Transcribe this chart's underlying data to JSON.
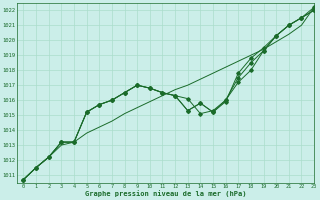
{
  "title": "Graphe pression niveau de la mer (hPa)",
  "bg_color": "#cbeee9",
  "grid_color": "#aaddcc",
  "line_color": "#1a6b2a",
  "text_color": "#1a6b2a",
  "xlim": [
    -0.5,
    23
  ],
  "ylim": [
    1010.5,
    1022.5
  ],
  "yticks": [
    1011,
    1012,
    1013,
    1014,
    1015,
    1016,
    1017,
    1018,
    1019,
    1020,
    1021,
    1022
  ],
  "xticks": [
    0,
    1,
    2,
    3,
    4,
    5,
    6,
    7,
    8,
    9,
    10,
    11,
    12,
    13,
    14,
    15,
    16,
    17,
    18,
    19,
    20,
    21,
    22,
    23
  ],
  "series": [
    [
      1010.7,
      1011.5,
      1012.2,
      1013.0,
      1013.2,
      1013.8,
      1014.2,
      1014.6,
      1015.1,
      1015.5,
      1015.9,
      1016.3,
      1016.7,
      1017.0,
      1017.4,
      1017.8,
      1018.2,
      1018.6,
      1019.0,
      1019.4,
      1019.9,
      1020.4,
      1021.0,
      1022.2
    ],
    [
      1010.7,
      1011.5,
      1012.2,
      1013.2,
      1013.2,
      1015.2,
      1015.7,
      1016.0,
      1016.5,
      1017.0,
      1016.8,
      1016.5,
      1016.3,
      1016.1,
      1015.1,
      1015.3,
      1016.0,
      1017.2,
      1018.0,
      1019.3,
      1020.3,
      1021.0,
      1021.5,
      1022.0
    ],
    [
      1010.7,
      1011.5,
      1012.2,
      1013.2,
      1013.2,
      1015.2,
      1015.7,
      1016.0,
      1016.5,
      1017.0,
      1016.8,
      1016.5,
      1016.3,
      1015.3,
      1015.8,
      1015.2,
      1016.0,
      1017.5,
      1018.5,
      1019.3,
      1020.3,
      1021.0,
      1021.5,
      1022.0
    ],
    [
      1010.7,
      1011.5,
      1012.2,
      1013.2,
      1013.2,
      1015.2,
      1015.7,
      1016.0,
      1016.5,
      1017.0,
      1016.8,
      1016.5,
      1016.3,
      1015.3,
      1015.8,
      1015.2,
      1015.9,
      1017.8,
      1018.8,
      1019.5,
      1020.3,
      1021.0,
      1021.5,
      1022.2
    ]
  ],
  "figsize": [
    3.2,
    2.0
  ],
  "dpi": 100
}
